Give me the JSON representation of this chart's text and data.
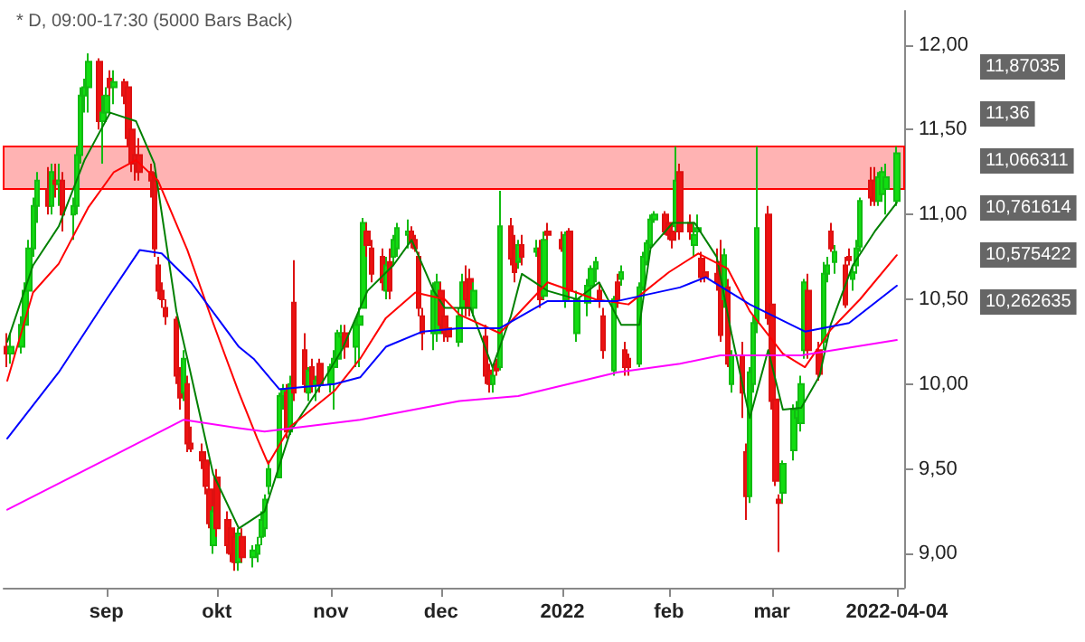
{
  "chart_data": {
    "type": "candlestick",
    "title": "* D, 09:00-17:30 (5000 Bars Back)",
    "x": [
      "2021-08-05",
      "2021-08-06",
      "2021-08-09",
      "2021-08-10",
      "2021-08-11",
      "2021-08-12",
      "2021-08-13",
      "2021-08-16",
      "2021-08-17",
      "2021-08-18",
      "2021-08-19",
      "2021-08-20",
      "2021-08-23",
      "2021-08-24",
      "2021-08-25",
      "2021-08-26",
      "2021-08-27",
      "2021-08-30",
      "2021-08-31",
      "2021-09-01",
      "2021-09-02",
      "2021-09-03",
      "2021-09-06",
      "2021-09-07",
      "2021-09-08",
      "2021-09-09",
      "2021-09-10",
      "2021-09-13",
      "2021-09-14",
      "2021-09-15",
      "2021-09-16",
      "2021-09-17",
      "2021-09-20",
      "2021-09-21",
      "2021-09-22",
      "2021-09-23",
      "2021-09-24",
      "2021-09-27",
      "2021-09-28",
      "2021-09-29",
      "2021-09-30",
      "2021-10-01",
      "2021-10-04",
      "2021-10-05",
      "2021-10-06",
      "2021-10-07",
      "2021-10-08",
      "2021-10-11",
      "2021-10-12",
      "2021-10-13",
      "2021-10-14",
      "2021-10-15",
      "2021-10-18",
      "2021-10-19",
      "2021-10-20",
      "2021-10-21",
      "2021-10-22",
      "2021-10-25",
      "2021-10-26",
      "2021-10-27",
      "2021-10-28",
      "2021-10-29",
      "2021-11-01",
      "2021-11-02",
      "2021-11-03",
      "2021-11-04",
      "2021-11-05",
      "2021-11-08",
      "2021-11-09",
      "2021-11-10",
      "2021-11-11",
      "2021-11-12",
      "2021-11-15",
      "2021-11-16",
      "2021-11-17",
      "2021-11-18",
      "2021-11-19",
      "2021-11-22",
      "2021-11-23",
      "2021-11-24",
      "2021-11-25",
      "2021-11-26",
      "2021-11-29",
      "2021-11-30",
      "2021-12-01",
      "2021-12-02",
      "2021-12-03",
      "2021-12-06",
      "2021-12-07",
      "2021-12-08",
      "2021-12-09",
      "2021-12-10",
      "2021-12-13",
      "2021-12-14",
      "2021-12-15",
      "2021-12-16",
      "2021-12-17",
      "2021-12-20",
      "2021-12-21",
      "2021-12-22",
      "2021-12-23",
      "2021-12-27",
      "2021-12-28",
      "2021-12-29",
      "2021-12-30",
      "2022-01-03",
      "2022-01-04",
      "2022-01-05",
      "2022-01-07",
      "2022-01-10",
      "2022-01-11",
      "2022-01-12",
      "2022-01-13",
      "2022-01-14",
      "2022-01-17",
      "2022-01-18",
      "2022-01-19",
      "2022-01-20",
      "2022-01-21",
      "2022-01-24",
      "2022-01-25",
      "2022-01-26",
      "2022-01-27",
      "2022-01-28",
      "2022-01-31",
      "2022-02-01",
      "2022-02-02",
      "2022-02-03",
      "2022-02-04",
      "2022-02-07",
      "2022-02-08",
      "2022-02-09",
      "2022-02-10",
      "2022-02-11",
      "2022-02-14",
      "2022-02-15",
      "2022-02-16",
      "2022-02-17",
      "2022-02-18",
      "2022-02-21",
      "2022-02-22",
      "2022-02-23",
      "2022-02-24",
      "2022-02-25",
      "2022-02-28",
      "2022-03-01",
      "2022-03-02",
      "2022-03-03",
      "2022-03-04",
      "2022-03-07",
      "2022-03-08",
      "2022-03-09",
      "2022-03-10",
      "2022-03-11",
      "2022-03-14",
      "2022-03-15",
      "2022-03-16",
      "2022-03-17",
      "2022-03-18",
      "2022-03-21",
      "2022-03-22",
      "2022-03-23",
      "2022-03-24",
      "2022-03-25",
      "2022-03-28",
      "2022-03-29",
      "2022-03-30",
      "2022-03-31",
      "2022-04-01",
      "2022-04-04"
    ],
    "ohlc": [
      [
        10.22,
        10.3,
        10.1,
        10.18
      ],
      [
        10.18,
        10.3,
        10.12,
        10.22
      ],
      [
        10.22,
        10.4,
        10.18,
        10.35
      ],
      [
        10.35,
        10.6,
        10.3,
        10.55
      ],
      [
        10.55,
        10.85,
        10.5,
        10.8
      ],
      [
        10.8,
        11.1,
        10.75,
        11.05
      ],
      [
        11.05,
        11.25,
        10.95,
        11.2
      ],
      [
        11.15,
        11.28,
        11.0,
        11.05
      ],
      [
        11.05,
        11.3,
        11.0,
        11.25
      ],
      [
        11.2,
        11.3,
        11.1,
        11.18
      ],
      [
        11.18,
        11.3,
        11.05,
        11.2
      ],
      [
        11.2,
        11.25,
        10.9,
        11.0
      ],
      [
        11.0,
        11.1,
        10.85,
        11.05
      ],
      [
        11.05,
        11.4,
        11.0,
        11.35
      ],
      [
        11.35,
        11.75,
        11.3,
        11.7
      ],
      [
        11.7,
        11.8,
        11.6,
        11.75
      ],
      [
        11.75,
        11.95,
        11.6,
        11.9
      ],
      [
        11.9,
        11.92,
        11.5,
        11.55
      ],
      [
        11.55,
        11.7,
        11.3,
        11.6
      ],
      [
        11.6,
        11.75,
        11.55,
        11.7
      ],
      [
        11.8,
        11.85,
        11.7,
        11.75
      ],
      [
        11.75,
        11.85,
        11.65,
        11.78
      ],
      [
        11.78,
        11.8,
        11.65,
        11.7
      ],
      [
        11.75,
        11.78,
        11.4,
        11.45
      ],
      [
        11.5,
        11.6,
        11.25,
        11.3
      ],
      [
        11.35,
        11.45,
        11.2,
        11.3
      ],
      [
        11.35,
        11.45,
        11.2,
        11.25
      ],
      [
        11.25,
        11.3,
        11.1,
        11.2
      ],
      [
        11.2,
        11.25,
        10.75,
        10.8
      ],
      [
        10.7,
        10.75,
        10.5,
        10.55
      ],
      [
        10.55,
        10.6,
        10.45,
        10.5
      ],
      [
        10.45,
        10.5,
        10.35,
        10.4
      ],
      [
        10.38,
        10.4,
        10.0,
        10.05
      ],
      [
        10.05,
        10.1,
        9.85,
        9.92
      ],
      [
        9.95,
        10.2,
        9.9,
        10.15
      ],
      [
        10.0,
        10.05,
        9.6,
        9.65
      ],
      [
        9.65,
        9.75,
        9.6,
        9.62
      ],
      [
        9.6,
        9.65,
        9.5,
        9.55
      ],
      [
        9.55,
        9.6,
        9.35,
        9.4
      ],
      [
        9.38,
        9.4,
        9.15,
        9.18
      ],
      [
        9.05,
        9.28,
        9.0,
        9.25
      ],
      [
        9.45,
        9.5,
        9.1,
        9.15
      ],
      [
        9.2,
        9.25,
        9.0,
        9.05
      ],
      [
        9.15,
        9.2,
        8.95,
        9.0
      ],
      [
        9.1,
        9.15,
        8.9,
        8.95
      ],
      [
        8.95,
        9.15,
        8.9,
        9.12
      ],
      [
        9.1,
        9.15,
        8.95,
        8.98
      ],
      [
        8.98,
        9.05,
        8.92,
        9.02
      ],
      [
        9.0,
        9.1,
        8.95,
        9.05
      ],
      [
        9.1,
        9.25,
        9.05,
        9.2
      ],
      [
        9.15,
        9.35,
        9.1,
        9.32
      ],
      [
        9.4,
        9.55,
        9.35,
        9.5
      ],
      [
        9.45,
        9.95,
        9.45,
        9.93
      ],
      [
        9.93,
        10.0,
        9.85,
        9.97
      ],
      [
        9.95,
        10.0,
        9.68,
        9.72
      ],
      [
        9.72,
        10.05,
        9.7,
        10.0
      ],
      [
        10.48,
        10.73,
        9.9,
        9.95
      ],
      [
        10.2,
        10.3,
        9.95,
        10.0
      ],
      [
        9.95,
        10.1,
        9.9,
        10.08
      ],
      [
        10.1,
        10.15,
        9.95,
        10.0
      ],
      [
        10.0,
        10.05,
        9.9,
        10.02
      ],
      [
        10.12,
        10.15,
        9.95,
        10.0
      ],
      [
        10.0,
        10.12,
        9.95,
        10.1
      ],
      [
        10.1,
        10.2,
        9.85,
        10.15
      ],
      [
        10.15,
        10.32,
        10.1,
        10.3
      ],
      [
        10.28,
        10.35,
        10.2,
        10.3
      ],
      [
        10.3,
        10.35,
        10.15,
        10.22
      ],
      [
        10.22,
        10.38,
        10.1,
        10.35
      ],
      [
        10.35,
        10.45,
        10.1,
        10.4
      ],
      [
        10.45,
        10.98,
        10.45,
        10.95
      ],
      [
        10.9,
        10.95,
        10.75,
        10.82
      ],
      [
        10.8,
        10.85,
        10.6,
        10.65
      ],
      [
        10.75,
        10.8,
        10.55,
        10.6
      ],
      [
        10.55,
        10.75,
        10.5,
        10.7
      ],
      [
        10.72,
        10.8,
        10.5,
        10.55
      ],
      [
        10.75,
        10.88,
        10.7,
        10.85
      ],
      [
        10.8,
        10.95,
        10.75,
        10.92
      ],
      [
        10.88,
        10.97,
        10.8,
        10.9
      ],
      [
        10.9,
        10.93,
        10.8,
        10.84
      ],
      [
        10.85,
        10.88,
        10.78,
        10.8
      ],
      [
        10.75,
        10.78,
        10.4,
        10.45
      ],
      [
        10.4,
        10.45,
        10.2,
        10.3
      ],
      [
        10.3,
        10.6,
        10.2,
        10.55
      ],
      [
        10.3,
        10.65,
        10.25,
        10.6
      ],
      [
        10.55,
        10.6,
        10.32,
        10.35
      ],
      [
        10.4,
        10.42,
        10.25,
        10.3
      ],
      [
        10.33,
        10.4,
        10.25,
        10.28
      ],
      [
        10.25,
        10.45,
        10.22,
        10.4
      ],
      [
        10.45,
        10.65,
        10.4,
        10.6
      ],
      [
        10.6,
        10.7,
        10.4,
        10.5
      ],
      [
        10.62,
        10.68,
        10.4,
        10.45
      ],
      [
        10.45,
        10.6,
        10.4,
        10.55
      ],
      [
        10.28,
        10.35,
        10.0,
        10.05
      ],
      [
        10.08,
        10.12,
        9.95,
        10.0
      ],
      [
        10.0,
        10.1,
        9.95,
        10.05
      ],
      [
        10.12,
        10.15,
        10.05,
        10.08
      ],
      [
        10.1,
        11.14,
        10.08,
        10.93
      ],
      [
        10.93,
        10.98,
        10.7,
        10.74
      ],
      [
        10.8,
        10.88,
        10.6,
        10.66
      ],
      [
        10.72,
        10.85,
        10.68,
        10.82
      ],
      [
        10.82,
        10.88,
        10.7,
        10.75
      ],
      [
        10.78,
        10.85,
        10.75,
        10.8
      ],
      [
        10.8,
        10.85,
        10.45,
        10.5
      ],
      [
        10.52,
        10.9,
        10.5,
        10.85
      ],
      [
        10.9,
        10.95,
        10.85,
        10.88
      ],
      [
        10.85,
        10.9,
        10.78,
        10.8
      ],
      [
        10.5,
        10.9,
        10.45,
        10.88
      ],
      [
        10.9,
        10.92,
        10.5,
        10.55
      ],
      [
        10.3,
        10.55,
        10.25,
        10.5
      ],
      [
        10.48,
        10.62,
        10.4,
        10.58
      ],
      [
        10.58,
        10.7,
        10.5,
        10.68
      ],
      [
        10.68,
        10.75,
        10.6,
        10.72
      ],
      [
        10.55,
        10.6,
        10.45,
        10.5
      ],
      [
        10.4,
        10.45,
        10.15,
        10.2
      ],
      [
        10.08,
        10.52,
        10.05,
        10.5
      ],
      [
        10.6,
        10.65,
        10.45,
        10.5
      ],
      [
        10.62,
        10.7,
        10.58,
        10.66
      ],
      [
        10.2,
        10.25,
        10.05,
        10.1
      ],
      [
        10.15,
        10.18,
        10.05,
        10.1
      ],
      [
        10.12,
        10.6,
        10.1,
        10.57
      ],
      [
        10.57,
        10.78,
        10.55,
        10.75
      ],
      [
        10.72,
        10.85,
        10.7,
        10.83
      ],
      [
        10.82,
        11.0,
        10.8,
        10.97
      ],
      [
        10.97,
        11.02,
        10.95,
        11.0
      ],
      [
        11.0,
        11.02,
        10.88,
        10.9
      ],
      [
        10.95,
        11.0,
        10.85,
        10.88
      ],
      [
        10.9,
        10.95,
        10.8,
        10.85
      ],
      [
        10.93,
        11.4,
        10.9,
        11.2
      ],
      [
        11.25,
        11.3,
        10.85,
        10.9
      ],
      [
        10.95,
        11.0,
        10.85,
        10.9
      ],
      [
        10.82,
        10.95,
        10.75,
        10.88
      ],
      [
        10.9,
        11.0,
        10.85,
        10.92
      ],
      [
        10.74,
        10.78,
        10.6,
        10.63
      ],
      [
        10.66,
        10.7,
        10.6,
        10.63
      ],
      [
        10.65,
        10.8,
        10.55,
        10.6
      ],
      [
        10.72,
        10.85,
        10.25,
        10.29
      ],
      [
        10.5,
        10.8,
        10.45,
        10.76
      ],
      [
        10.57,
        10.62,
        10.1,
        10.12
      ],
      [
        10.0,
        10.2,
        9.95,
        10.17
      ],
      [
        10.17,
        10.25,
        9.8,
        9.95
      ],
      [
        9.6,
        9.65,
        9.2,
        9.34
      ],
      [
        9.34,
        10.1,
        9.3,
        10.07
      ],
      [
        10.0,
        10.4,
        9.95,
        10.36
      ],
      [
        10.36,
        11.4,
        10.3,
        10.92
      ],
      [
        11.0,
        11.05,
        10.35,
        10.39
      ],
      [
        10.47,
        10.5,
        9.85,
        9.9
      ],
      [
        9.91,
        9.95,
        9.4,
        9.43
      ],
      [
        9.32,
        9.35,
        9.01,
        9.3
      ],
      [
        9.36,
        9.55,
        9.3,
        9.53
      ],
      [
        9.61,
        9.88,
        9.55,
        9.85
      ],
      [
        9.8,
        9.9,
        9.75,
        9.85
      ],
      [
        9.77,
        10.05,
        9.72,
        10.0
      ],
      [
        10.2,
        10.62,
        10.15,
        10.6
      ],
      [
        10.55,
        10.65,
        10.15,
        10.2
      ],
      [
        10.2,
        10.25,
        10.02,
        10.06
      ],
      [
        10.25,
        10.72,
        10.2,
        10.65
      ],
      [
        10.65,
        10.75,
        10.6,
        10.7
      ],
      [
        10.9,
        10.95,
        10.78,
        10.8
      ],
      [
        10.72,
        10.82,
        10.65,
        10.78
      ],
      [
        10.7,
        10.75,
        10.45,
        10.47
      ],
      [
        10.75,
        10.8,
        10.7,
        10.73
      ],
      [
        10.62,
        10.7,
        10.55,
        10.66
      ],
      [
        10.7,
        10.85,
        10.65,
        10.8
      ],
      [
        10.81,
        11.1,
        10.78,
        11.08
      ],
      [
        11.2,
        11.28,
        11.05,
        11.1
      ],
      [
        11.2,
        11.28,
        11.05,
        11.08
      ],
      [
        11.08,
        11.25,
        11.05,
        11.22
      ],
      [
        11.12,
        11.28,
        11.1,
        11.25
      ],
      [
        11.15,
        11.3,
        11.0,
        11.22
      ],
      [
        11.08,
        11.4,
        11.05,
        11.36
      ]
    ],
    "series": [
      {
        "type": "line",
        "color": "#008000",
        "x": [
          "2021-08-05",
          "2021-08-12",
          "2021-08-19",
          "2021-08-26",
          "2021-09-02",
          "2021-09-09",
          "2021-09-14",
          "2021-09-20",
          "2021-09-23",
          "2021-09-30",
          "2021-10-07",
          "2021-10-14",
          "2021-10-21",
          "2021-10-28",
          "2021-11-04",
          "2021-11-11",
          "2021-11-18",
          "2021-11-23",
          "2021-11-29",
          "2021-12-02",
          "2021-12-09",
          "2021-12-15",
          "2021-12-20",
          "2021-12-23",
          "2021-12-30",
          "2022-01-07",
          "2022-01-13",
          "2022-01-19",
          "2022-01-24",
          "2022-01-27",
          "2022-02-02",
          "2022-02-08",
          "2022-02-14",
          "2022-02-18",
          "2022-02-23",
          "2022-02-28",
          "2022-03-04",
          "2022-03-09",
          "2022-03-14",
          "2022-03-17",
          "2022-03-23",
          "2022-03-29",
          "2022-04-04"
        ],
        "values": [
          10.25,
          10.7,
          10.93,
          11.32,
          11.6,
          11.55,
          11.3,
          10.43,
          10.15,
          9.47,
          9.15,
          9.25,
          9.72,
          9.95,
          10.2,
          10.55,
          10.7,
          10.85,
          10.55,
          10.45,
          10.45,
          10.1,
          10.4,
          10.65,
          10.55,
          10.5,
          10.6,
          10.35,
          10.35,
          10.8,
          10.95,
          10.95,
          10.75,
          10.3,
          9.8,
          10.2,
          9.85,
          9.86,
          10.05,
          10.35,
          10.7,
          10.9,
          11.07
        ]
      },
      {
        "type": "line",
        "color": "#ff0000",
        "x": [
          "2021-08-05",
          "2021-08-12",
          "2021-08-19",
          "2021-08-27",
          "2021-09-03",
          "2021-09-09",
          "2021-09-15",
          "2021-09-23",
          "2021-09-30",
          "2021-10-07",
          "2021-10-12",
          "2021-10-15",
          "2021-10-21",
          "2021-11-02",
          "2021-11-09",
          "2021-11-16",
          "2021-11-24",
          "2021-12-02",
          "2021-12-06",
          "2021-12-17",
          "2021-12-30",
          "2022-01-12",
          "2022-01-21",
          "2022-02-01",
          "2022-02-09",
          "2022-02-17",
          "2022-02-23",
          "2022-03-04",
          "2022-03-10",
          "2022-03-17",
          "2022-03-25",
          "2022-04-04"
        ],
        "values": [
          10.02,
          10.54,
          10.71,
          11.04,
          11.25,
          11.32,
          11.2,
          10.79,
          10.36,
          9.95,
          9.68,
          9.53,
          9.75,
          9.96,
          10.15,
          10.39,
          10.54,
          10.5,
          10.41,
          10.3,
          10.6,
          10.5,
          10.47,
          10.66,
          10.77,
          10.68,
          10.43,
          10.18,
          10.1,
          10.32,
          10.5,
          10.76
        ]
      },
      {
        "type": "line",
        "color": "#0000ff",
        "x": [
          "2021-08-05",
          "2021-08-19",
          "2021-09-01",
          "2021-09-10",
          "2021-09-16",
          "2021-09-24",
          "2021-10-07",
          "2021-10-11",
          "2021-10-18",
          "2021-11-02",
          "2021-11-09",
          "2021-11-16",
          "2021-11-26",
          "2021-12-06",
          "2021-12-17",
          "2021-12-30",
          "2022-01-18",
          "2022-02-04",
          "2022-02-11",
          "2022-02-23",
          "2022-03-10",
          "2022-03-22",
          "2022-04-04"
        ],
        "values": [
          9.68,
          10.07,
          10.5,
          10.79,
          10.77,
          10.6,
          10.22,
          10.15,
          9.97,
          10.0,
          10.04,
          10.22,
          10.31,
          10.33,
          10.33,
          10.49,
          10.49,
          10.57,
          10.63,
          10.47,
          10.31,
          10.36,
          10.58
        ]
      },
      {
        "type": "line",
        "color": "#ff00ff",
        "x": [
          "2021-08-05",
          "2021-09-03",
          "2021-09-22",
          "2021-10-07",
          "2021-10-14",
          "2021-11-09",
          "2021-12-06",
          "2021-12-22",
          "2022-01-18",
          "2022-02-04",
          "2022-02-15",
          "2022-03-09",
          "2022-04-04"
        ],
        "values": [
          9.26,
          9.58,
          9.79,
          9.74,
          9.72,
          9.79,
          9.9,
          9.93,
          10.07,
          10.12,
          10.17,
          10.17,
          10.26
        ]
      }
    ],
    "bands": [
      {
        "axis": "y",
        "from": 11.15,
        "to": 11.4,
        "color": "#ffb3b3"
      }
    ],
    "annotations": [
      "11,87035",
      "11,36",
      "11,066311",
      "10,761614",
      "10,575422",
      "10,262635"
    ],
    "xlim": [
      "2021-08-04",
      "2022-04-06"
    ],
    "xticks": [
      {
        "value": "2021-09-01",
        "label": "sep"
      },
      {
        "value": "2021-10-01",
        "label": "okt"
      },
      {
        "value": "2021-11-01",
        "label": "nov"
      },
      {
        "value": "2021-12-01",
        "label": "dec"
      },
      {
        "value": "2022-01-03",
        "label": "2022"
      },
      {
        "value": "2022-02-01",
        "label": "feb"
      },
      {
        "value": "2022-03-01",
        "label": "mar"
      },
      {
        "value": "2022-04-04",
        "label": "2022-04-04"
      }
    ],
    "ylim": [
      8.8,
      12.2
    ],
    "yticks": [
      {
        "value": 9,
        "label": "9,00"
      },
      {
        "value": 9.5,
        "label": "9,50"
      },
      {
        "value": 10,
        "label": "10,00"
      },
      {
        "value": 10.5,
        "label": "10,50"
      },
      {
        "value": 11,
        "label": "11,00"
      },
      {
        "value": 11.5,
        "label": "11,50"
      },
      {
        "value": 12,
        "label": "12,00"
      }
    ],
    "grid": false,
    "marker": "none",
    "line_style": "solid"
  }
}
